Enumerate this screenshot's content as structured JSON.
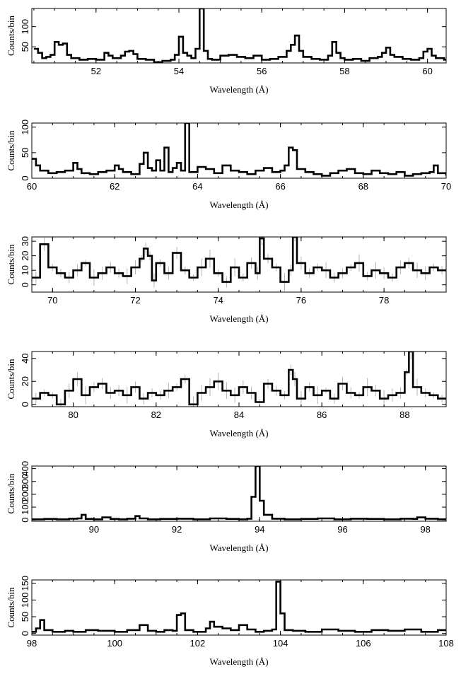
{
  "chart_data": [
    {
      "type": "line",
      "xlabel": "Wavelength (Å)",
      "ylabel": "Counts/bin",
      "xlim": [
        50.45,
        60.45
      ],
      "ylim": [
        10,
        145
      ],
      "x_ticks": [
        52,
        54,
        56,
        58,
        60
      ],
      "y_ticks": [
        50,
        100
      ],
      "errors": false,
      "series": [
        {
          "x": [
            50.5,
            50.6,
            50.7,
            50.8,
            50.9,
            51.0,
            51.1,
            51.2,
            51.3,
            51.4,
            51.6,
            51.8,
            52.0,
            52.2,
            52.3,
            52.4,
            52.6,
            52.7,
            52.8,
            52.9,
            53.0,
            53.2,
            53.4,
            53.6,
            53.8,
            53.9,
            54.0,
            54.1,
            54.2,
            54.3,
            54.4,
            54.5,
            54.6,
            54.7,
            54.8,
            55.0,
            55.2,
            55.4,
            55.6,
            55.8,
            56.0,
            56.2,
            56.4,
            56.6,
            56.7,
            56.8,
            56.9,
            57.0,
            57.2,
            57.4,
            57.6,
            57.7,
            57.8,
            57.9,
            58.0,
            58.2,
            58.4,
            58.6,
            58.8,
            58.9,
            59.0,
            59.1,
            59.2,
            59.4,
            59.6,
            59.8,
            59.9,
            60.0,
            60.1,
            60.2,
            60.4
          ],
          "y": [
            45,
            35,
            22,
            25,
            30,
            62,
            55,
            58,
            30,
            22,
            18,
            20,
            18,
            35,
            28,
            22,
            28,
            38,
            40,
            32,
            20,
            18,
            12,
            15,
            18,
            30,
            75,
            35,
            28,
            22,
            45,
            145,
            40,
            20,
            18,
            28,
            30,
            25,
            22,
            28,
            18,
            20,
            25,
            40,
            55,
            78,
            40,
            25,
            20,
            18,
            28,
            62,
            35,
            22,
            18,
            20,
            15,
            22,
            25,
            35,
            48,
            30,
            25,
            20,
            18,
            22,
            38,
            45,
            28,
            22,
            18
          ]
        }
      ]
    },
    {
      "type": "line",
      "xlabel": "Wavelength (Å)",
      "ylabel": "Counts/bin",
      "xlim": [
        60,
        70
      ],
      "ylim": [
        0,
        108
      ],
      "x_ticks": [
        60,
        62,
        64,
        66,
        68,
        70
      ],
      "y_ticks": [
        0,
        50,
        100
      ],
      "errors": false,
      "series": [
        {
          "x": [
            60.0,
            60.1,
            60.2,
            60.4,
            60.6,
            60.8,
            61.0,
            61.1,
            61.2,
            61.4,
            61.6,
            61.8,
            62.0,
            62.1,
            62.2,
            62.4,
            62.6,
            62.7,
            62.8,
            62.9,
            63.0,
            63.1,
            63.2,
            63.3,
            63.4,
            63.5,
            63.6,
            63.7,
            63.8,
            64.0,
            64.2,
            64.4,
            64.6,
            64.8,
            65.0,
            65.2,
            65.4,
            65.6,
            65.8,
            66.0,
            66.1,
            66.2,
            66.3,
            66.4,
            66.6,
            66.8,
            67.0,
            67.2,
            67.4,
            67.6,
            67.8,
            68.0,
            68.2,
            68.4,
            68.6,
            68.8,
            69.0,
            69.2,
            69.4,
            69.6,
            69.7,
            69.8,
            70.0
          ],
          "y": [
            38,
            25,
            15,
            10,
            12,
            15,
            30,
            18,
            10,
            8,
            12,
            15,
            25,
            18,
            12,
            8,
            28,
            50,
            20,
            15,
            35,
            15,
            60,
            12,
            20,
            30,
            15,
            108,
            12,
            22,
            18,
            10,
            25,
            15,
            12,
            8,
            15,
            20,
            12,
            15,
            25,
            60,
            55,
            18,
            12,
            8,
            5,
            10,
            15,
            18,
            10,
            8,
            15,
            10,
            8,
            12,
            5,
            8,
            10,
            12,
            25,
            10,
            5
          ]
        }
      ]
    },
    {
      "type": "line",
      "xlabel": "Wavelength (Å)",
      "ylabel": "Counts/bin",
      "xlim": [
        69.5,
        79.5
      ],
      "ylim": [
        -5,
        33
      ],
      "x_ticks": [
        70,
        72,
        74,
        76,
        78
      ],
      "y_ticks": [
        0,
        10,
        20,
        30
      ],
      "errors": true,
      "series": [
        {
          "x": [
            69.5,
            69.7,
            69.9,
            70.1,
            70.3,
            70.5,
            70.7,
            70.9,
            71.1,
            71.3,
            71.5,
            71.7,
            71.9,
            72.1,
            72.2,
            72.3,
            72.4,
            72.5,
            72.7,
            72.9,
            73.1,
            73.3,
            73.5,
            73.7,
            73.9,
            74.1,
            74.3,
            74.5,
            74.7,
            74.9,
            75.0,
            75.1,
            75.3,
            75.5,
            75.7,
            75.8,
            75.9,
            76.1,
            76.3,
            76.5,
            76.7,
            76.9,
            77.1,
            77.3,
            77.5,
            77.7,
            77.9,
            78.1,
            78.3,
            78.5,
            78.7,
            78.9,
            79.1,
            79.3
          ],
          "y": [
            5,
            28,
            12,
            8,
            5,
            10,
            15,
            5,
            8,
            12,
            8,
            6,
            12,
            18,
            25,
            20,
            3,
            15,
            8,
            22,
            10,
            5,
            12,
            18,
            8,
            2,
            12,
            5,
            15,
            8,
            32,
            18,
            12,
            2,
            10,
            33,
            15,
            8,
            12,
            10,
            5,
            8,
            12,
            15,
            6,
            10,
            8,
            5,
            12,
            15,
            10,
            8,
            12,
            10
          ]
        }
      ]
    },
    {
      "type": "line",
      "xlabel": "Wavelength (Å)",
      "ylabel": "Counts/bin",
      "xlim": [
        79,
        89
      ],
      "ylim": [
        -2,
        46
      ],
      "x_ticks": [
        80,
        82,
        84,
        86,
        88
      ],
      "y_ticks": [
        0,
        20,
        40
      ],
      "errors": true,
      "series": [
        {
          "x": [
            79.0,
            79.2,
            79.4,
            79.6,
            79.8,
            80.0,
            80.2,
            80.4,
            80.6,
            80.8,
            81.0,
            81.2,
            81.4,
            81.6,
            81.8,
            82.0,
            82.2,
            82.4,
            82.6,
            82.8,
            83.0,
            83.2,
            83.4,
            83.6,
            83.8,
            84.0,
            84.2,
            84.4,
            84.6,
            84.8,
            85.0,
            85.2,
            85.3,
            85.4,
            85.6,
            85.8,
            86.0,
            86.2,
            86.4,
            86.6,
            86.8,
            87.0,
            87.2,
            87.4,
            87.6,
            87.8,
            88.0,
            88.1,
            88.2,
            88.4,
            88.6,
            88.8
          ],
          "y": [
            5,
            10,
            8,
            0,
            12,
            22,
            8,
            15,
            18,
            10,
            12,
            8,
            15,
            5,
            10,
            8,
            12,
            15,
            22,
            0,
            10,
            15,
            20,
            12,
            8,
            15,
            10,
            2,
            18,
            12,
            8,
            30,
            22,
            5,
            15,
            8,
            12,
            5,
            18,
            10,
            8,
            15,
            12,
            5,
            8,
            10,
            28,
            46,
            15,
            10,
            8,
            5
          ]
        }
      ]
    },
    {
      "type": "line",
      "xlabel": "Wavelength (Å)",
      "ylabel": "Counts/bin",
      "xlim": [
        88.5,
        98.5
      ],
      "ylim": [
        -10,
        420
      ],
      "x_ticks": [
        90,
        92,
        94,
        96,
        98
      ],
      "y_ticks": [
        0,
        100,
        200,
        300,
        400
      ],
      "y_tick_labels": [
        "0",
        "100",
        "200",
        "300",
        "400"
      ],
      "errors": false,
      "series": [
        {
          "x": [
            88.5,
            88.8,
            89.1,
            89.4,
            89.6,
            89.7,
            89.8,
            90.0,
            90.2,
            90.4,
            90.6,
            90.8,
            91.0,
            91.1,
            91.3,
            91.6,
            92.0,
            92.4,
            92.8,
            93.2,
            93.5,
            93.7,
            93.8,
            93.9,
            94.0,
            94.1,
            94.3,
            94.6,
            95.0,
            95.4,
            95.8,
            96.2,
            96.6,
            97.0,
            97.4,
            97.7,
            97.8,
            98.0,
            98.3
          ],
          "y": [
            5,
            8,
            5,
            10,
            12,
            40,
            8,
            5,
            20,
            8,
            5,
            10,
            30,
            12,
            5,
            8,
            10,
            5,
            12,
            8,
            5,
            10,
            180,
            420,
            150,
            40,
            10,
            5,
            8,
            12,
            5,
            10,
            8,
            5,
            10,
            8,
            20,
            10,
            5
          ]
        }
      ]
    },
    {
      "type": "line",
      "xlabel": "Wavelength (Å)",
      "ylabel": "Counts/bin",
      "xlim": [
        98,
        108
      ],
      "ylim": [
        -5,
        160
      ],
      "x_ticks": [
        98,
        100,
        102,
        104,
        106,
        108
      ],
      "y_ticks": [
        0,
        50,
        100,
        150
      ],
      "errors": false,
      "series": [
        {
          "x": [
            98.0,
            98.1,
            98.2,
            98.3,
            98.5,
            98.8,
            99.0,
            99.3,
            99.6,
            100.0,
            100.3,
            100.6,
            100.8,
            101.0,
            101.2,
            101.4,
            101.5,
            101.6,
            101.7,
            101.9,
            102.2,
            102.3,
            102.4,
            102.6,
            102.8,
            103.0,
            103.2,
            103.4,
            103.6,
            103.8,
            103.9,
            104.0,
            104.1,
            104.3,
            104.6,
            105.0,
            105.4,
            105.8,
            106.2,
            106.6,
            107.0,
            107.4,
            107.8
          ],
          "y": [
            5,
            15,
            40,
            10,
            5,
            8,
            5,
            10,
            8,
            5,
            10,
            25,
            8,
            5,
            10,
            8,
            55,
            60,
            10,
            5,
            15,
            35,
            20,
            15,
            10,
            25,
            12,
            5,
            8,
            12,
            155,
            60,
            10,
            8,
            5,
            12,
            8,
            5,
            10,
            8,
            12,
            5,
            10
          ]
        }
      ]
    }
  ]
}
